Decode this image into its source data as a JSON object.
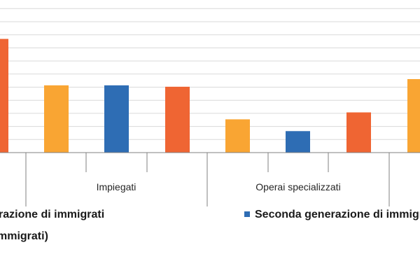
{
  "chart_data": {
    "type": "bar",
    "groups": [
      {
        "label": "",
        "values": [
          null,
          null,
          164
        ]
      },
      {
        "label": "Impiegati",
        "values": [
          97,
          97,
          95
        ]
      },
      {
        "label": "Operai specializzati",
        "values": [
          48,
          31,
          58
        ]
      },
      {
        "label": "",
        "values": [
          106,
          null,
          null
        ]
      }
    ],
    "series": [
      {
        "name": "",
        "color": "#F9A533"
      },
      {
        "name": "Seconda generazione di immigrati",
        "color": "#2E6DB4"
      },
      {
        "name": "",
        "color": "#EF6533"
      }
    ],
    "legend_fragments": [
      "razione di immigrati",
      "mmigrati)"
    ],
    "ylim": [
      0,
      210
    ],
    "gridlines": true,
    "legend_position": "bottom"
  }
}
